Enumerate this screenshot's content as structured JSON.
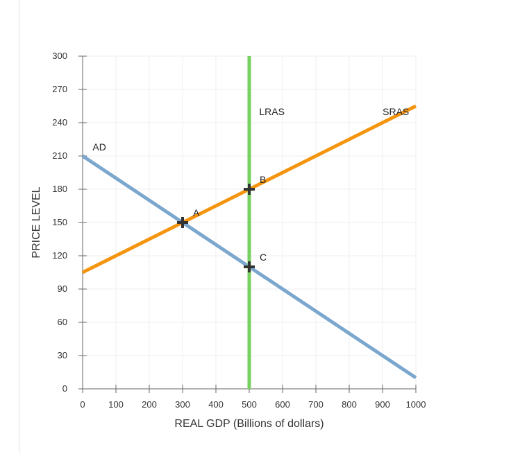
{
  "chart_data": {
    "type": "line",
    "xlabel": "REAL GDP (Billions of dollars)",
    "ylabel": "PRICE LEVEL",
    "xlim": [
      0,
      1000
    ],
    "ylim": [
      0,
      300
    ],
    "x_ticks": [
      0,
      100,
      200,
      300,
      400,
      500,
      600,
      700,
      800,
      900,
      1000
    ],
    "y_ticks": [
      0,
      30,
      60,
      90,
      120,
      150,
      180,
      210,
      240,
      270,
      300
    ],
    "grid": true,
    "series": [
      {
        "name": "AD",
        "color": "#7ba7cf",
        "points": [
          [
            0,
            210
          ],
          [
            1000,
            10
          ]
        ]
      },
      {
        "name": "SRAS",
        "color": "#f5940f",
        "points": [
          [
            0,
            105
          ],
          [
            1000,
            255
          ]
        ]
      },
      {
        "name": "LRAS",
        "color": "#77d05f",
        "points": [
          [
            500,
            0
          ],
          [
            500,
            300
          ]
        ]
      }
    ],
    "points": [
      {
        "label": "A",
        "x": 300,
        "y": 150
      },
      {
        "label": "B",
        "x": 500,
        "y": 180
      },
      {
        "label": "C",
        "x": 500,
        "y": 110
      }
    ]
  }
}
